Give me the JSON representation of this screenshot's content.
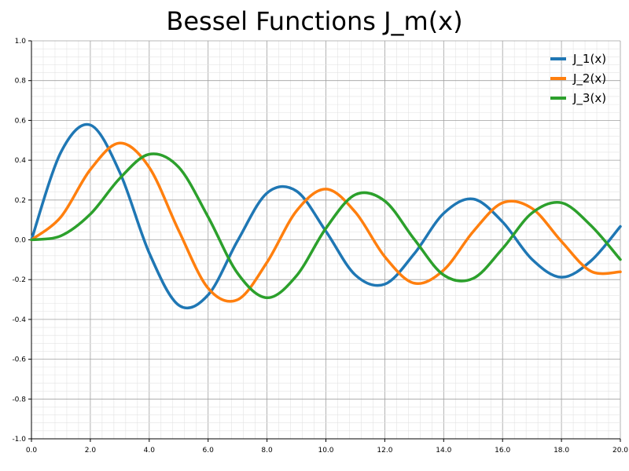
{
  "chart_data": {
    "type": "line",
    "title": "Bessel Functions J_m(x)",
    "xlabel": "",
    "ylabel": "",
    "xlim": [
      0,
      20
    ],
    "ylim": [
      -1,
      1
    ],
    "x_ticks": [
      "0.0",
      "2.0",
      "4.0",
      "6.0",
      "8.0",
      "10.0",
      "12.0",
      "14.0",
      "16.0",
      "18.0",
      "20.0"
    ],
    "y_ticks": [
      "1.0",
      "0.8",
      "0.6",
      "0.4",
      "0.2",
      "0.0",
      "-0.2",
      "-0.4",
      "-0.6",
      "-0.8",
      "-1.0"
    ],
    "grid": true,
    "legend_position": "top-right",
    "x": [
      0,
      1,
      2,
      3,
      4,
      5,
      6,
      7,
      8,
      9,
      10,
      11,
      12,
      13,
      14,
      15,
      16,
      17,
      18,
      19,
      20
    ],
    "series": [
      {
        "name": "J_1(x)",
        "color": "#1f77b4",
        "values": [
          0,
          0.44,
          0.577,
          0.339,
          -0.066,
          -0.328,
          -0.277,
          -0.005,
          0.235,
          0.245,
          0.043,
          -0.177,
          -0.223,
          -0.07,
          0.133,
          0.205,
          0.09,
          -0.098,
          -0.188,
          -0.106,
          0.067
        ]
      },
      {
        "name": "J_2(x)",
        "color": "#ff7f0e",
        "values": [
          0,
          0.115,
          0.353,
          0.486,
          0.364,
          0.047,
          -0.243,
          -0.301,
          -0.113,
          0.145,
          0.255,
          0.139,
          -0.085,
          -0.218,
          -0.152,
          0.041,
          0.186,
          0.158,
          -0.008,
          -0.158,
          -0.161
        ]
      },
      {
        "name": "J_3(x)",
        "color": "#2ca02c",
        "values": [
          0,
          0.02,
          0.129,
          0.309,
          0.43,
          0.365,
          0.115,
          -0.168,
          -0.291,
          -0.181,
          0.058,
          0.227,
          0.195,
          0.003,
          -0.177,
          -0.194,
          -0.044,
          0.135,
          0.186,
          0.072,
          -0.099
        ]
      }
    ]
  }
}
